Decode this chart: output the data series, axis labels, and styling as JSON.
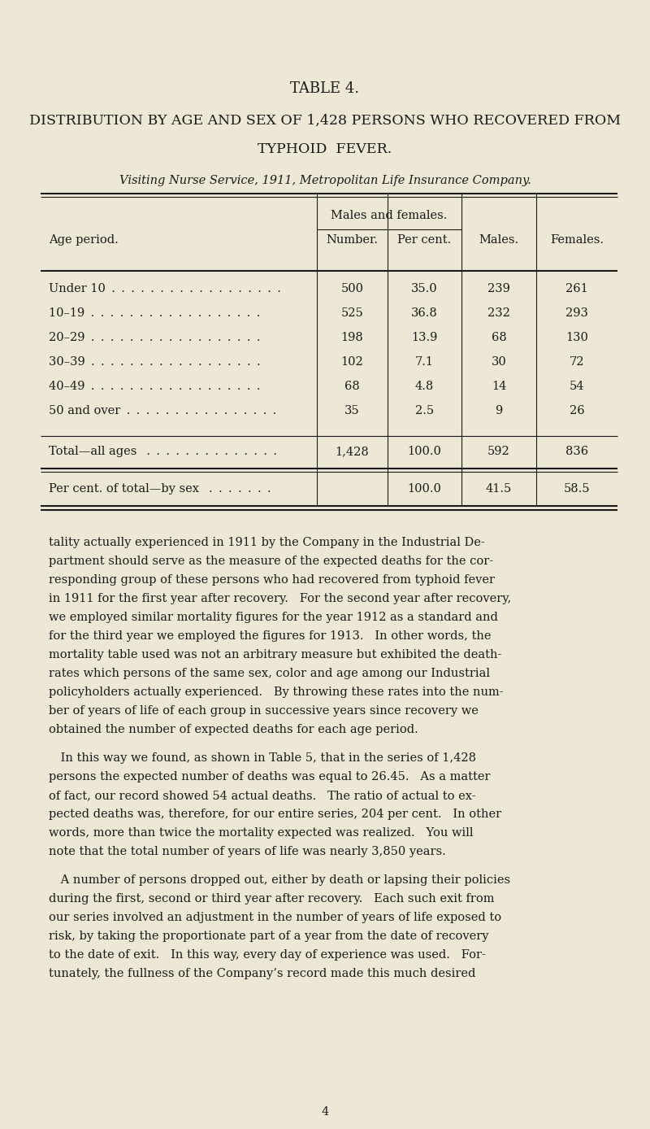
{
  "bg_color": "#ede8d5",
  "text_color": "#1a1a1a",
  "title1": "TABLE 4.",
  "title2": "DISTRIBUTION BY AGE AND SEX OF 1,428 PERSONS WHO RECOVERED FROM",
  "title3": "TYPHOID  FEVER.",
  "subtitle": "Visiting Nurse Service, 1911, Metropolitan Life Insurance Company.",
  "subheader": "Males and females.",
  "row_labels": [
    "Under 10 . . . . . . . . . . . . . . . . . .",
    "10–19 . . . . . . . . . . . . . . . . . .",
    "20–29 . . . . . . . . . . . . . . . . . .",
    "30–39 . . . . . . . . . . . . . . . . . .",
    "40–49 . . . . . . . . . . . . . . . . . .",
    "50 and over . . . . . . . . . . . . . . . ."
  ],
  "numbers": [
    "500",
    "525",
    "198",
    "102",
    "68",
    "35"
  ],
  "percents": [
    "35.0",
    "36.8",
    "13.9",
    "7.1",
    "4.8",
    "2.5"
  ],
  "males": [
    "239",
    "232",
    "68",
    "30",
    "14",
    "9"
  ],
  "females": [
    "261",
    "293",
    "130",
    "72",
    "54",
    "26"
  ],
  "total_label": "Total—all ages  . . . . . . . . . . . . . .",
  "total_number": "1,428",
  "total_percent": "100.0",
  "total_males": "592",
  "total_females": "836",
  "pct_label": "Per cent. of total—by sex  . . . . . . .",
  "pct_percent": "100.0",
  "pct_males": "41.5",
  "pct_females": "58.5",
  "body_paragraphs": [
    [
      "tality actually experienced in 1911 by the Company in the Industrial De-",
      "partment should serve as the measure of the expected deaths for the cor-",
      "responding group of these persons who had recovered from typhoid fever",
      "in 1911 for the first year after recovery.   For the second year after recovery,",
      "we employed similar mortality figures for the year 1912 as a standard and",
      "for the third year we employed the figures for 1913.   In other words, the",
      "mortality table used was not an arbitrary measure but exhibited the death-",
      "rates which persons of the same sex, color and age among our Industrial",
      "policyholders actually experienced.   By throwing these rates into the num-",
      "ber of years of life of each group in successive years since recovery we",
      "obtained the number of expected deaths for each age period."
    ],
    [
      " In this way we found, as shown in Table 5, that in the series of 1,428",
      "persons the expected number of deaths was equal to 26.45.   As a matter",
      "of fact, our record showed 54 actual deaths.   The ratio of actual to ex-",
      "pected deaths was, therefore, for our entire series, 204 per cent.   In other",
      "words, more than twice the mortality expected was realized.   You will",
      "note that the total number of years of life was nearly 3,850 years."
    ],
    [
      " A number of persons dropped out, either by death or lapsing their policies",
      "during the first, second or third year after recovery.   Each such exit from",
      "our series involved an adjustment in the number of years of life exposed to",
      "risk, by taking the proportionate part of a year from the date of recovery",
      "to the date of exit.   In this way, every day of experience was used.   For-",
      "tunately, the fullness of the Company’s record made this much desired"
    ]
  ],
  "page_number": "4"
}
